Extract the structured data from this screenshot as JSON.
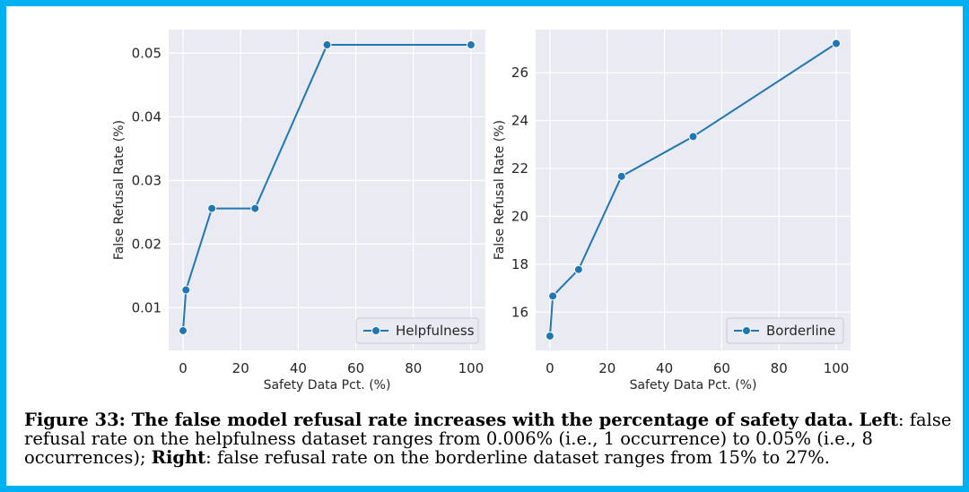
{
  "chart_data": [
    {
      "type": "line",
      "xlabel": "Safety Data Pct. (%)",
      "ylabel": "False Refusal Rate (%)",
      "xlim": [
        -5,
        105
      ],
      "ylim": [
        0.0033,
        0.0537
      ],
      "xticks": [
        0,
        20,
        40,
        60,
        80,
        100
      ],
      "yticks": [
        0.01,
        0.02,
        0.03,
        0.04,
        0.05
      ],
      "ytick_labels": [
        "0.01",
        "0.02",
        "0.03",
        "0.04",
        "0.05"
      ],
      "legend_position": "lower-right",
      "grid": true,
      "series": [
        {
          "name": "Helpfulness",
          "color": "#1f77b4",
          "x": [
            0,
            1,
            10,
            25,
            50,
            100
          ],
          "y": [
            0.0064,
            0.0128,
            0.0256,
            0.0256,
            0.0513,
            0.0513
          ]
        }
      ]
    },
    {
      "type": "line",
      "xlabel": "Safety Data Pct. (%)",
      "ylabel": "False Refusal Rate (%)",
      "xlim": [
        -5,
        105
      ],
      "ylim": [
        14.4,
        27.8
      ],
      "xticks": [
        0,
        20,
        40,
        60,
        80,
        100
      ],
      "yticks": [
        16,
        18,
        20,
        22,
        24,
        26
      ],
      "ytick_labels": [
        "16",
        "18",
        "20",
        "22",
        "24",
        "26"
      ],
      "legend_position": "lower-right",
      "grid": true,
      "series": [
        {
          "name": "Borderline",
          "color": "#1f77b4",
          "x": [
            0,
            1,
            10,
            25,
            50,
            100
          ],
          "y": [
            15.0,
            16.67,
            17.78,
            21.67,
            23.33,
            27.22
          ]
        }
      ]
    }
  ],
  "caption": {
    "figure_label": "Figure 33: The false model refusal rate increases with the percentage of safety data.",
    "left_label": "Left",
    "left_text": ": false refusal rate on the helpfulness dataset ranges from 0.006% (i.e., 1 occurrence) to 0.05% (i.e., 8 occurrences);",
    "right_label": "Right",
    "right_text": ": false refusal rate on the borderline dataset ranges from 15% to 27%."
  },
  "colors": {
    "border": "#00b0f0",
    "plot_background": "#eaeaf2",
    "grid": "#ffffff",
    "line": "#1f77b4"
  }
}
